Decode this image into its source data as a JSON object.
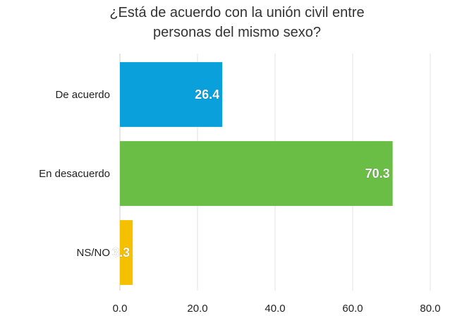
{
  "chart_data": {
    "type": "bar",
    "orientation": "horizontal",
    "title_lines": [
      "¿Está de acuerdo con la unión civil entre",
      "personas del mismo sexo?"
    ],
    "categories": [
      "De acuerdo",
      "En desacuerdo",
      "NS/NO"
    ],
    "values": [
      26.4,
      70.3,
      3.3
    ],
    "value_labels": [
      "26.4",
      "70.3",
      "3.3"
    ],
    "colors": [
      "#0aa0dc",
      "#6abd45",
      "#f5c000"
    ],
    "xlim": [
      0,
      80
    ],
    "x_ticks": [
      0,
      20,
      40,
      60,
      80
    ],
    "x_tick_labels": [
      "0.0",
      "20.0",
      "40.0",
      "60.0",
      "80.0"
    ],
    "grid": true,
    "xlabel": "",
    "ylabel": ""
  }
}
